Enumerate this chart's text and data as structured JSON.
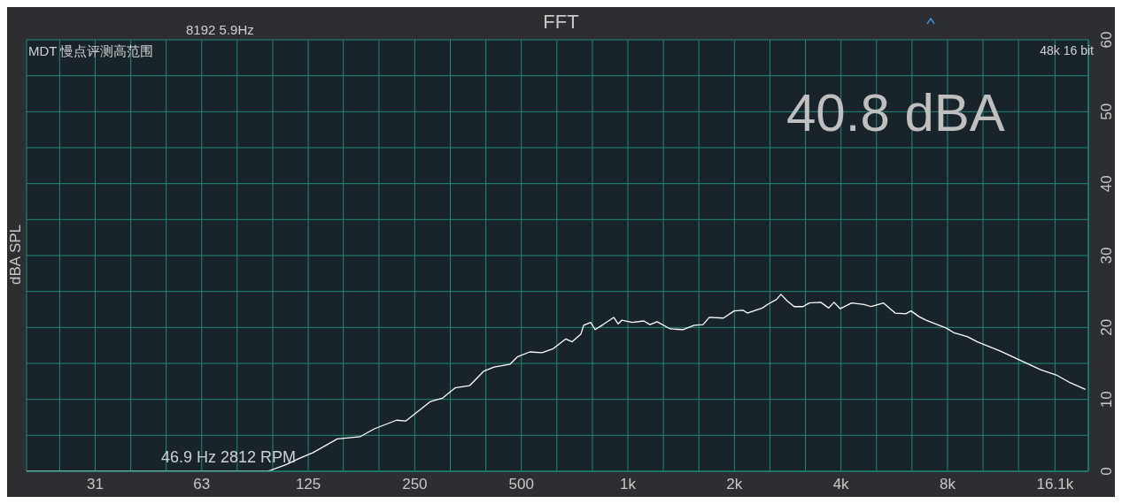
{
  "chart_data": {
    "type": "line",
    "title": "FFT",
    "ylabel": "dBA SPL",
    "annotations": [
      "8192  5.9Hz",
      "MDT 慢点评测高范围",
      "48k 16 bit",
      "40.8 dBA",
      "46.9 Hz 2812 RPM"
    ],
    "log": "x",
    "grid": true,
    "marker": "none",
    "line_style": "solid",
    "xlim": [
      20,
      20000
    ],
    "xticks": [
      {
        "value": 24.8,
        "label": null
      },
      {
        "value": 31.25,
        "label": "31"
      },
      {
        "value": 39.4,
        "label": null
      },
      {
        "value": 49.6,
        "label": null
      },
      {
        "value": 62.5,
        "label": "63"
      },
      {
        "value": 78.7,
        "label": null
      },
      {
        "value": 99.2,
        "label": null
      },
      {
        "value": 125,
        "label": "125"
      },
      {
        "value": 157,
        "label": null
      },
      {
        "value": 198,
        "label": null
      },
      {
        "value": 250,
        "label": "250"
      },
      {
        "value": 315,
        "label": null
      },
      {
        "value": 397,
        "label": null
      },
      {
        "value": 500,
        "label": "500"
      },
      {
        "value": 630,
        "label": null
      },
      {
        "value": 794,
        "label": null
      },
      {
        "value": 1000,
        "label": "1k"
      },
      {
        "value": 1260,
        "label": null
      },
      {
        "value": 1587,
        "label": null
      },
      {
        "value": 2000,
        "label": "2k"
      },
      {
        "value": 2520,
        "label": null
      },
      {
        "value": 3175,
        "label": null
      },
      {
        "value": 4000,
        "label": "4k"
      },
      {
        "value": 5040,
        "label": null
      },
      {
        "value": 6350,
        "label": null
      },
      {
        "value": 8000,
        "label": "8k"
      },
      {
        "value": 10080,
        "label": null
      },
      {
        "value": 12700,
        "label": null
      },
      {
        "value": 16100,
        "label": "16.1k"
      }
    ],
    "ylim": [
      0,
      60
    ],
    "yticks": [
      0,
      {
        "value": 5,
        "label": null
      },
      10,
      {
        "value": 15,
        "label": null
      },
      20,
      {
        "value": 25,
        "label": null
      },
      30,
      {
        "value": 35,
        "label": null
      },
      40,
      {
        "value": 45,
        "label": null
      },
      50,
      {
        "value": 55,
        "label": null
      },
      60
    ],
    "series": [
      {
        "color": "#ffffff",
        "x": [
          20,
          96,
          108,
          118,
          129,
          151,
          175,
          192,
          222,
          236,
          277,
          300,
          325,
          357,
          391,
          419,
          465,
          487,
          528,
          572,
          613,
          668,
          696,
          737,
          750,
          785,
          808,
          851,
          912,
          939,
          961,
          1029,
          1109,
          1155,
          1209,
          1318,
          1429,
          1540,
          1631,
          1698,
          1862,
          1996,
          2114,
          2175,
          2398,
          2483,
          2630,
          2707,
          2818,
          2951,
          3125,
          3255,
          3508,
          3694,
          3824,
          3981,
          4290,
          4652,
          4871,
          5278,
          5688,
          6096,
          6311,
          6648,
          6960,
          7945,
          8317,
          9120,
          9718,
          11290,
          12740,
          14710,
          16230,
          17790,
          19620
        ],
        "values": [
          0,
          0,
          0.9,
          1.8,
          2.6,
          4.5,
          4.8,
          5.9,
          7.1,
          7.0,
          9.7,
          10.2,
          11.6,
          11.9,
          13.9,
          14.5,
          14.9,
          15.9,
          16.6,
          16.5,
          17.0,
          18.4,
          18.0,
          19.1,
          20.3,
          20.7,
          19.7,
          20.4,
          21.4,
          20.5,
          21.0,
          20.7,
          20.9,
          20.4,
          20.8,
          19.8,
          19.7,
          20.3,
          20.4,
          21.4,
          21.3,
          22.3,
          22.4,
          22.0,
          22.7,
          23.2,
          23.9,
          24.6,
          23.7,
          22.9,
          22.9,
          23.4,
          23.5,
          22.7,
          23.5,
          22.6,
          23.4,
          23.2,
          22.9,
          23.4,
          22.0,
          21.9,
          22.3,
          21.5,
          21.0,
          19.9,
          19.3,
          18.7,
          18.0,
          16.7,
          15.5,
          14.1,
          13.4,
          12.3,
          11.4
        ]
      }
    ]
  }
}
